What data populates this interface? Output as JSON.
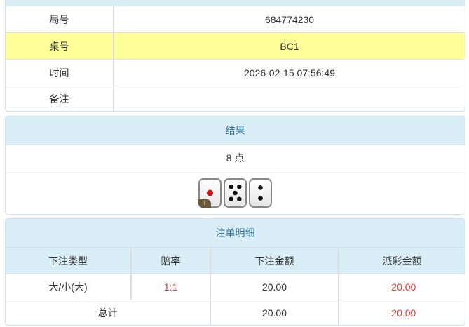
{
  "info": {
    "rows": [
      {
        "label": "局号",
        "value": "684774230"
      },
      {
        "label": "桌号",
        "value": "BC1"
      },
      {
        "label": "时间",
        "value": "2026-02-15 07:56:49"
      },
      {
        "label": "备注",
        "value": ""
      }
    ]
  },
  "result": {
    "title": "结果",
    "points": "8 点",
    "dice": [
      1,
      5,
      2
    ],
    "info_badge": "i"
  },
  "bets": {
    "title": "注单明细",
    "columns": [
      "下注类型",
      "赔率",
      "下注金额",
      "派彩金额"
    ],
    "rows": [
      {
        "type": "大/小(大)",
        "odds": "1:1",
        "amount": "20.00",
        "payout": "-20.00"
      }
    ],
    "total": {
      "label": "总计",
      "amount": "20.00",
      "payout": "-20.00"
    }
  },
  "colors": {
    "header_bg": "#d9edf7",
    "highlight_row": "#ffff99",
    "negative": "#e4393c"
  }
}
